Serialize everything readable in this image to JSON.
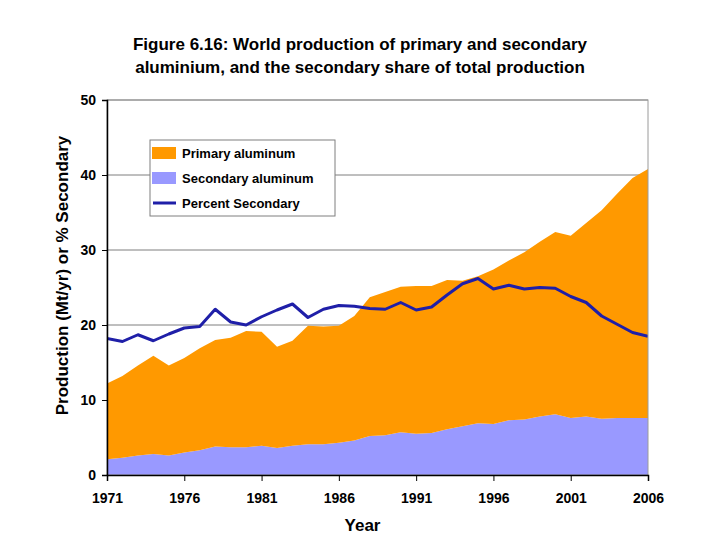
{
  "chart_data": {
    "type": "area",
    "title": "Figure 6.16: World production of primary and secondary\naluminium, and the secondary share of total production",
    "x_label": "Year",
    "y_label": "Production (Mt/yr) or % Secondary",
    "x": [
      1971,
      1972,
      1973,
      1974,
      1975,
      1976,
      1977,
      1978,
      1979,
      1980,
      1981,
      1982,
      1983,
      1984,
      1985,
      1986,
      1987,
      1988,
      1989,
      1990,
      1991,
      1992,
      1993,
      1994,
      1995,
      1996,
      1997,
      1998,
      1999,
      2000,
      2001,
      2002,
      2003,
      2004,
      2005,
      2006
    ],
    "stacked": true,
    "series": [
      {
        "name": "Primary aluminum",
        "type": "area",
        "color": "#ff9900",
        "values": [
          10.1,
          10.9,
          12.0,
          13.1,
          12.0,
          12.6,
          13.6,
          14.2,
          14.6,
          15.5,
          15.2,
          13.5,
          14.0,
          15.8,
          15.7,
          15.6,
          16.6,
          18.5,
          19.1,
          19.4,
          19.7,
          19.6,
          19.9,
          19.4,
          19.6,
          20.6,
          21.3,
          22.3,
          23.3,
          24.3,
          24.3,
          25.8,
          27.8,
          29.9,
          32.0,
          33.2
        ]
      },
      {
        "name": "Secondary aluminum",
        "type": "area",
        "color": "#9999ff",
        "values": [
          2.1,
          2.3,
          2.6,
          2.8,
          2.6,
          3.0,
          3.3,
          3.8,
          3.7,
          3.7,
          3.9,
          3.6,
          3.9,
          4.1,
          4.1,
          4.3,
          4.6,
          5.2,
          5.3,
          5.7,
          5.5,
          5.6,
          6.1,
          6.5,
          6.9,
          6.8,
          7.3,
          7.4,
          7.8,
          8.1,
          7.6,
          7.8,
          7.5,
          7.6,
          7.6,
          7.6
        ]
      },
      {
        "name": "Percent Secondary",
        "type": "line",
        "color": "#1f1fa8",
        "values": [
          18.2,
          17.8,
          18.7,
          17.9,
          18.8,
          19.6,
          19.8,
          22.1,
          20.4,
          20.0,
          21.1,
          22.0,
          22.8,
          21.0,
          22.1,
          22.6,
          22.5,
          22.2,
          22.1,
          23.0,
          22.0,
          22.4,
          24.0,
          25.5,
          26.2,
          24.8,
          25.3,
          24.8,
          25.0,
          24.9,
          23.8,
          23.0,
          21.2,
          20.1,
          19.0,
          18.5
        ]
      }
    ],
    "xlim": [
      1971,
      2006
    ],
    "xticks": [
      1971,
      1976,
      1981,
      1986,
      1991,
      1996,
      2001,
      2006
    ],
    "ylim": [
      0,
      50
    ],
    "yticks": [
      0,
      10,
      20,
      30,
      40,
      50
    ],
    "grid": true,
    "legend": "upper left"
  }
}
